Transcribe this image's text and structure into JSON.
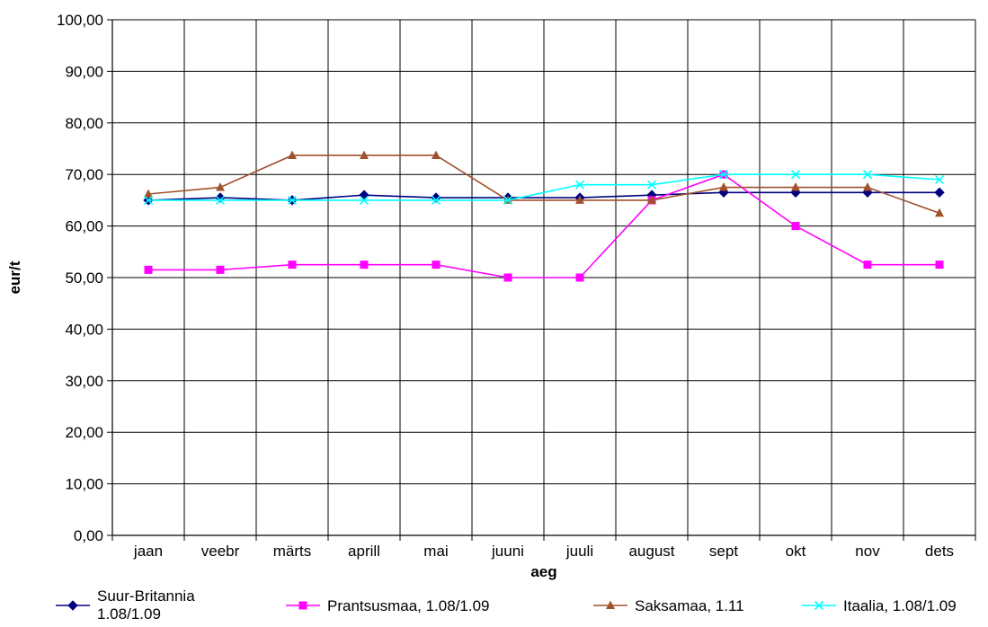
{
  "chart_data": {
    "type": "line",
    "xlabel": "aeg",
    "ylabel": "eur/t",
    "ylim": [
      0,
      100
    ],
    "ytick_step": 10,
    "ytick_labels": [
      "0,00",
      "10,00",
      "20,00",
      "30,00",
      "40,00",
      "50,00",
      "60,00",
      "70,00",
      "80,00",
      "90,00",
      "100,00"
    ],
    "categories": [
      "jaan",
      "veebr",
      "märts",
      "aprill",
      "mai",
      "juuni",
      "juuli",
      "august",
      "sept",
      "okt",
      "nov",
      "dets"
    ],
    "grid": true,
    "legend_position": "bottom",
    "series": [
      {
        "name": "Suur-Britannia 1.08/1.09",
        "legend_lines": [
          "Suur-Britannia",
          "1.08/1.09"
        ],
        "color": "#000080",
        "marker": "diamond",
        "values": [
          65.0,
          65.5,
          65.0,
          66.0,
          65.5,
          65.5,
          65.5,
          66.0,
          66.5,
          66.5,
          66.5,
          66.5
        ]
      },
      {
        "name": "Prantsusmaa, 1.08/1.09",
        "legend_lines": [
          "Prantsusmaa, 1.08/1.09"
        ],
        "color": "#FF00FF",
        "marker": "square",
        "values": [
          51.5,
          51.5,
          52.5,
          52.5,
          52.5,
          50.0,
          50.0,
          65.0,
          70.0,
          60.0,
          52.5,
          52.5
        ]
      },
      {
        "name": "Saksamaa, 1.11",
        "legend_lines": [
          "Saksamaa, 1.11"
        ],
        "color": "#A0522D",
        "marker": "triangle",
        "values": [
          66.2,
          67.5,
          73.7,
          73.7,
          73.7,
          65.0,
          65.0,
          65.0,
          67.5,
          67.5,
          67.5,
          62.5
        ]
      },
      {
        "name": "Itaalia, 1.08/1.09",
        "legend_lines": [
          "Itaalia, 1.08/1.09"
        ],
        "color": "#00FFFF",
        "marker": "x",
        "values": [
          65.0,
          65.0,
          65.0,
          65.0,
          65.0,
          65.0,
          68.0,
          68.0,
          70.0,
          70.0,
          70.0,
          69.0
        ]
      }
    ]
  }
}
